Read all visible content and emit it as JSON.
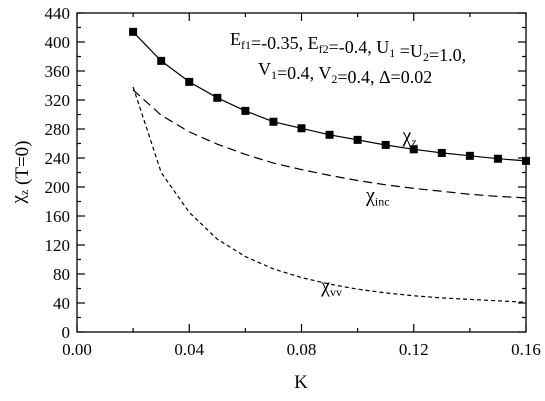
{
  "chart_data": {
    "type": "line",
    "xlabel": "K",
    "ylabel": {
      "main": "χ",
      "sub": "z",
      "suffix": " (T=0)"
    },
    "xlim": [
      0.0,
      0.16
    ],
    "ylim": [
      0,
      440
    ],
    "x_ticks": [
      0.0,
      0.04,
      0.08,
      0.12,
      0.16
    ],
    "x_tick_labels": [
      "0.00",
      "0.04",
      "0.08",
      "0.12",
      "0.16"
    ],
    "y_ticks": [
      0,
      40,
      80,
      120,
      160,
      200,
      240,
      280,
      320,
      360,
      400,
      440
    ],
    "y_tick_labels": [
      "0",
      "40",
      "80",
      "120",
      "160",
      "200",
      "240",
      "280",
      "320",
      "360",
      "400",
      "440"
    ],
    "grid": false,
    "annotation": {
      "line1": [
        {
          "t": "E"
        },
        {
          "t": "f1",
          "sub": true
        },
        {
          "t": "=-0.35, E"
        },
        {
          "t": "f2",
          "sub": true
        },
        {
          "t": "=-0.4, U"
        },
        {
          "t": "1",
          "sub": true
        },
        {
          "t": " =U"
        },
        {
          "t": "2",
          "sub": true
        },
        {
          "t": "=1.0,"
        }
      ],
      "line2": [
        {
          "t": "V"
        },
        {
          "t": "1",
          "sub": true
        },
        {
          "t": "=0.4, V"
        },
        {
          "t": "2",
          "sub": true
        },
        {
          "t": "=0.4, Δ=0.02"
        }
      ]
    },
    "series": [
      {
        "name": "χz",
        "label_main": "χ",
        "label_sub": "z",
        "style": "solid-square-markers",
        "x": [
          0.02,
          0.03,
          0.04,
          0.05,
          0.06,
          0.07,
          0.08,
          0.09,
          0.1,
          0.11,
          0.12,
          0.13,
          0.14,
          0.15,
          0.16
        ],
        "y": [
          414,
          374,
          345,
          323,
          305,
          290,
          281,
          272,
          265,
          258,
          252,
          247,
          243,
          239,
          236
        ]
      },
      {
        "name": "χinc",
        "label_main": "χ",
        "label_sub": "inc",
        "style": "dashed",
        "x": [
          0.02,
          0.03,
          0.04,
          0.05,
          0.06,
          0.07,
          0.08,
          0.09,
          0.1,
          0.11,
          0.12,
          0.13,
          0.14,
          0.15,
          0.16
        ],
        "y": [
          334,
          299,
          276,
          259,
          245,
          233,
          224,
          216,
          209,
          203,
          198,
          194,
          190,
          187,
          185
        ]
      },
      {
        "name": "χvv",
        "label_main": "χ",
        "label_sub": "vv",
        "style": "dotted",
        "x": [
          0.02,
          0.03,
          0.04,
          0.05,
          0.06,
          0.07,
          0.08,
          0.09,
          0.1,
          0.11,
          0.12,
          0.13,
          0.14,
          0.15,
          0.16
        ],
        "y": [
          338,
          220,
          165,
          128,
          104,
          87,
          75,
          66,
          59,
          54,
          50,
          47,
          45,
          43,
          41
        ]
      }
    ]
  }
}
